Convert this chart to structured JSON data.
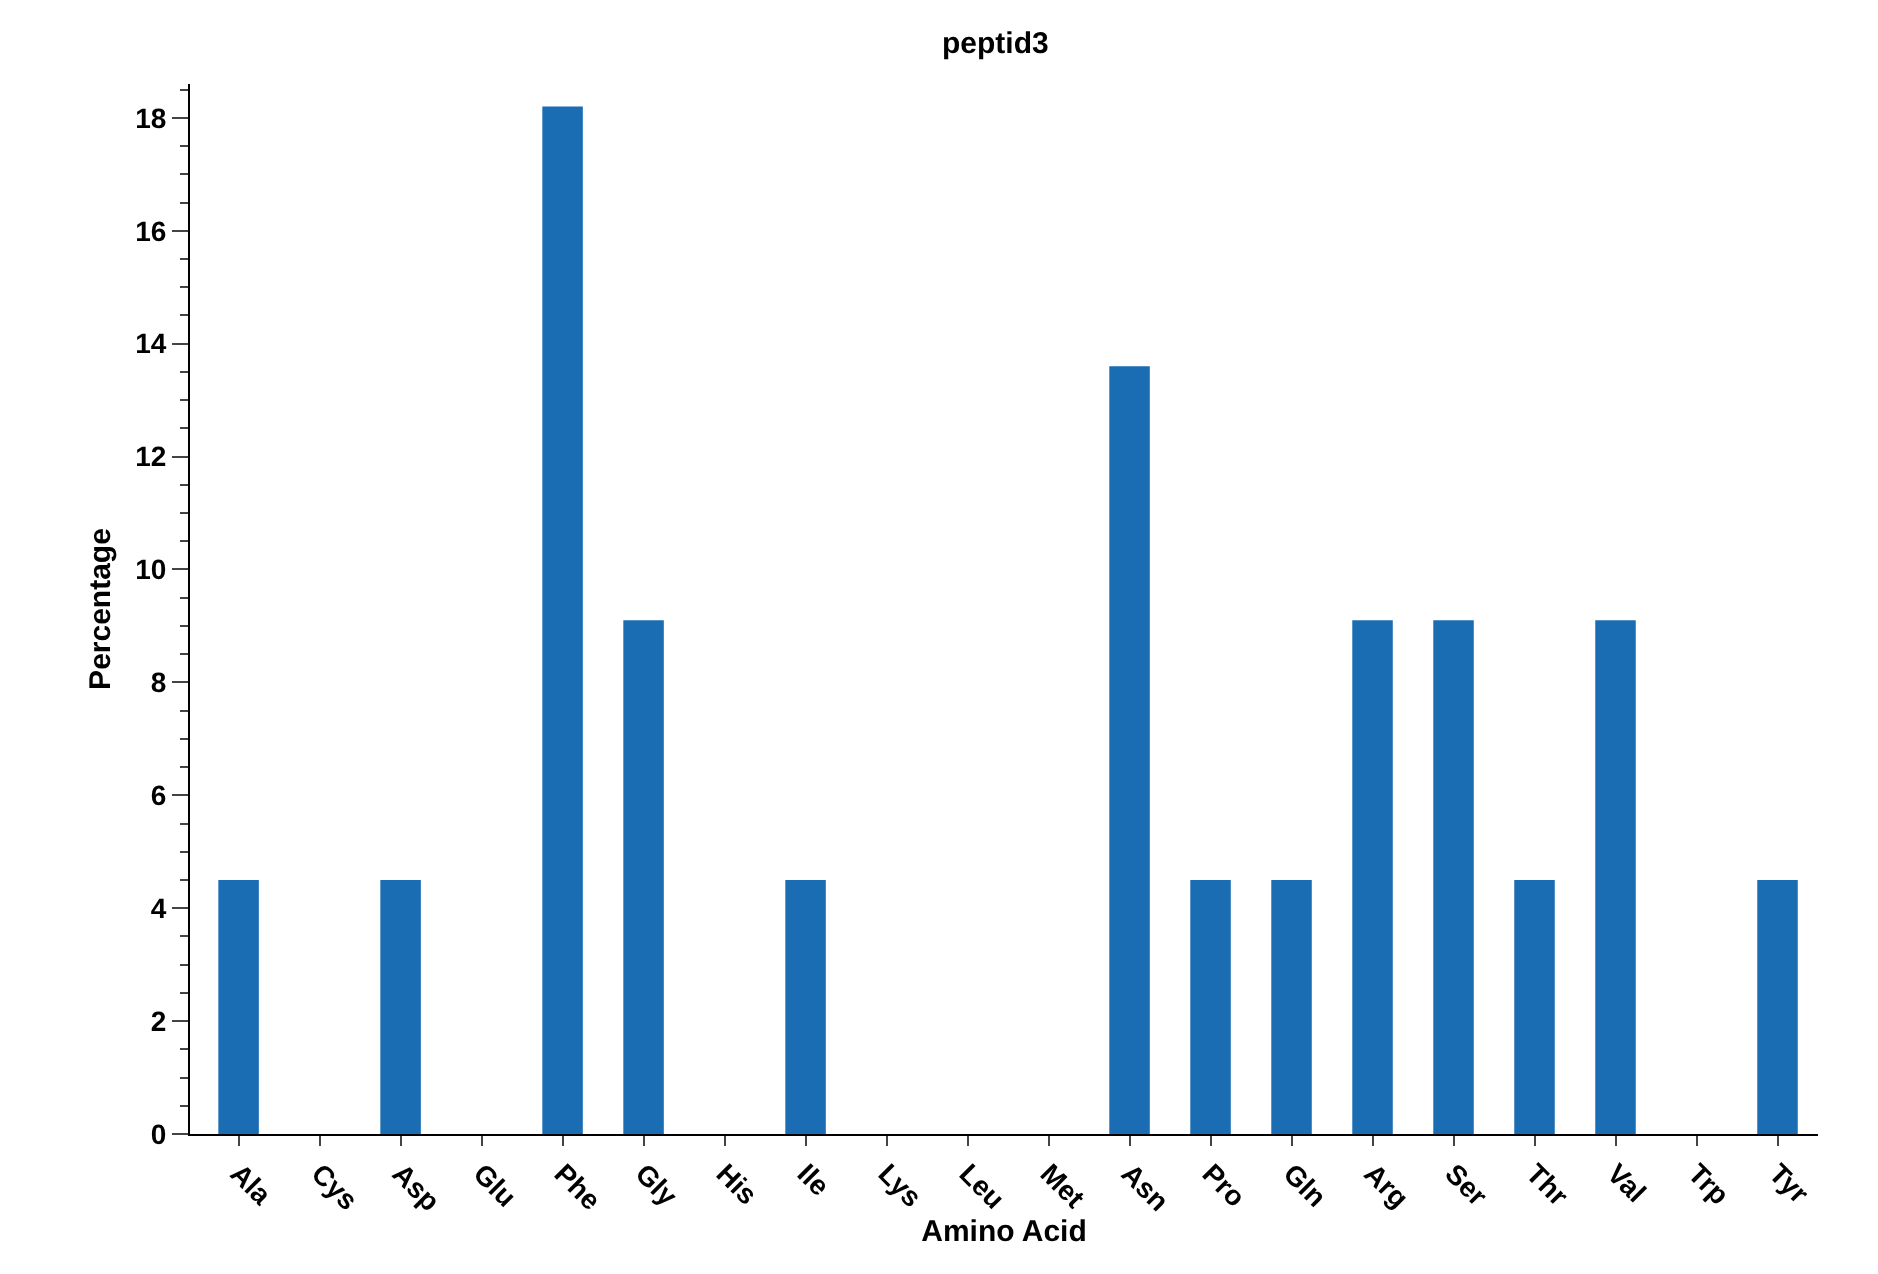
{
  "chart_data": {
    "type": "bar",
    "title": "peptid3",
    "xlabel": "Amino Acid",
    "ylabel": "Percentage",
    "categories": [
      "Ala",
      "Cys",
      "Asp",
      "Glu",
      "Phe",
      "Gly",
      "His",
      "Ile",
      "Lys",
      "Leu",
      "Met",
      "Asn",
      "Pro",
      "Gln",
      "Arg",
      "Ser",
      "Thr",
      "Val",
      "Trp",
      "Tyr"
    ],
    "values": [
      4.5,
      0,
      4.5,
      0,
      18.2,
      9.1,
      0,
      4.5,
      0,
      0,
      0,
      13.6,
      4.5,
      4.5,
      9.1,
      9.1,
      4.5,
      9.1,
      0,
      4.5
    ],
    "color": "#1a6db3",
    "ylim": [
      0,
      18.6
    ],
    "yticks": [
      0,
      2,
      4,
      6,
      8,
      10,
      12,
      14,
      16,
      18
    ],
    "grid": false,
    "legend": false
  }
}
